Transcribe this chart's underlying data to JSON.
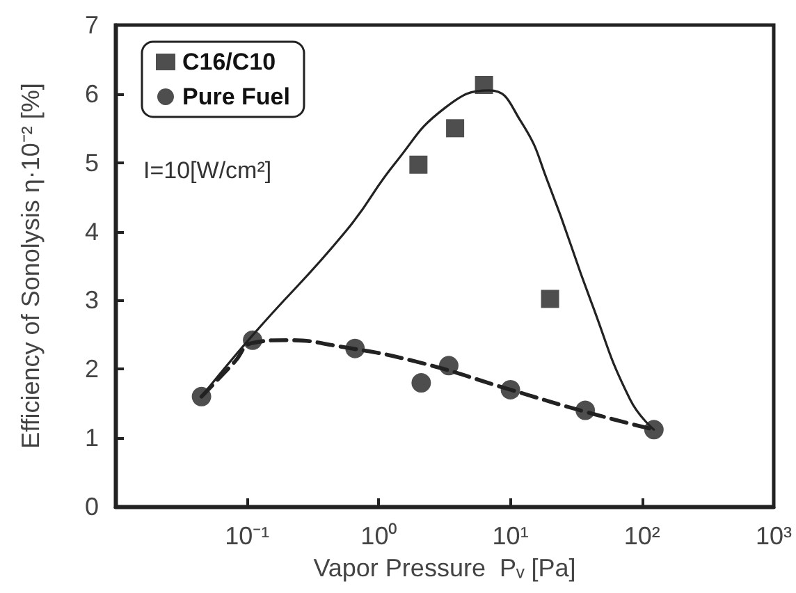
{
  "chart_data": {
    "type": "scatter",
    "xlabel": "Vapor Pressure  Pᵥ [Pa]",
    "ylabel": "Efficiency of Sonolysis η·10⁻² [%]",
    "annotations": [
      "I=10[W/cm²]"
    ],
    "log": "x",
    "xlim": [
      0.01,
      1000
    ],
    "xticks": [
      {
        "value": 0.1,
        "label": "10⁻¹"
      },
      {
        "value": 1,
        "label": "10⁰"
      },
      {
        "value": 10,
        "label": "10¹"
      },
      {
        "value": 100,
        "label": "10²"
      },
      {
        "value": 1000,
        "label": "10³"
      }
    ],
    "ylim": [
      0,
      7
    ],
    "yticks": [
      0,
      1,
      2,
      3,
      4,
      5,
      6,
      7
    ],
    "grid": false,
    "legend": "top left",
    "series": [
      {
        "name": "C16/C10",
        "marker": "square",
        "color": "#222222",
        "x": [
          2.0,
          3.8,
          6.3,
          20
        ],
        "values": [
          4.97,
          5.5,
          6.13,
          3.02
        ]
      },
      {
        "name": "Pure Fuel",
        "marker": "circle",
        "color": "#222222",
        "x": [
          0.045,
          0.11,
          0.66,
          2.1,
          3.4,
          10,
          37,
          123
        ],
        "values": [
          1.6,
          2.42,
          2.3,
          1.8,
          2.05,
          1.7,
          1.4,
          1.12
        ]
      },
      {
        "type": "line",
        "marker": "none",
        "line_style": "solid",
        "color": "#222222",
        "x": [
          0.045,
          0.111,
          0.56,
          1.34,
          3.2,
          6.9,
          12,
          19.6,
          41,
          81,
          123
        ],
        "values": [
          1.6,
          2.5,
          4.0,
          5.0,
          5.8,
          6.05,
          5.6,
          4.68,
          2.98,
          1.56,
          1.12
        ]
      },
      {
        "type": "line",
        "marker": "none",
        "line_style": "dashed",
        "color": "#222222",
        "x": [
          0.045,
          0.08,
          0.11,
          0.2,
          0.5,
          2,
          10,
          37,
          123
        ],
        "values": [
          1.6,
          2.1,
          2.38,
          2.42,
          2.33,
          2.1,
          1.7,
          1.38,
          1.12
        ]
      }
    ]
  }
}
